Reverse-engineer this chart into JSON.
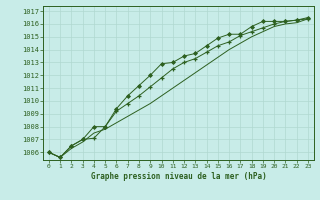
{
  "title": "Graphe pression niveau de la mer (hPa)",
  "bg_color": "#c8ece8",
  "grid_color": "#b0d8d0",
  "line_color": "#2d6020",
  "xlim": [
    -0.5,
    23.5
  ],
  "ylim": [
    1005.4,
    1017.4
  ],
  "yticks": [
    1006,
    1007,
    1008,
    1009,
    1010,
    1011,
    1012,
    1013,
    1014,
    1015,
    1016,
    1017
  ],
  "xticks": [
    0,
    1,
    2,
    3,
    4,
    5,
    6,
    7,
    8,
    9,
    10,
    11,
    12,
    13,
    14,
    15,
    16,
    17,
    18,
    19,
    20,
    21,
    22,
    23
  ],
  "line1_x": [
    0,
    1,
    2,
    3,
    4,
    5,
    6,
    7,
    8,
    9,
    10,
    11,
    12,
    13,
    14,
    15,
    16,
    17,
    18,
    19,
    20,
    21,
    22,
    23
  ],
  "line1_y": [
    1006.0,
    1005.6,
    1006.5,
    1007.0,
    1007.1,
    1008.0,
    1009.2,
    1009.8,
    1010.4,
    1011.1,
    1011.8,
    1012.5,
    1013.0,
    1013.3,
    1013.8,
    1014.3,
    1014.6,
    1015.1,
    1015.4,
    1015.7,
    1016.0,
    1016.2,
    1016.3,
    1016.4
  ],
  "line2_x": [
    0,
    1,
    2,
    3,
    4,
    5,
    6,
    7,
    8,
    9,
    10,
    11,
    12,
    13,
    14,
    15,
    16,
    17,
    18,
    19,
    20,
    21,
    22,
    23
  ],
  "line2_y": [
    1006.0,
    1005.6,
    1006.5,
    1007.0,
    1008.0,
    1008.0,
    1009.4,
    1010.4,
    1011.2,
    1012.0,
    1012.9,
    1013.0,
    1013.5,
    1013.7,
    1014.3,
    1014.9,
    1015.2,
    1015.2,
    1015.8,
    1016.2,
    1016.2,
    1016.2,
    1016.3,
    1016.5
  ],
  "line3_x": [
    0,
    1,
    2,
    3,
    4,
    5,
    6,
    7,
    8,
    9,
    10,
    11,
    12,
    13,
    14,
    15,
    16,
    17,
    18,
    19,
    20,
    21,
    22,
    23
  ],
  "line3_y": [
    1006.0,
    1005.6,
    1006.3,
    1006.8,
    1007.5,
    1007.8,
    1008.3,
    1008.8,
    1009.3,
    1009.8,
    1010.4,
    1011.0,
    1011.6,
    1012.2,
    1012.8,
    1013.4,
    1014.0,
    1014.5,
    1015.0,
    1015.4,
    1015.8,
    1016.0,
    1016.1,
    1016.4
  ]
}
